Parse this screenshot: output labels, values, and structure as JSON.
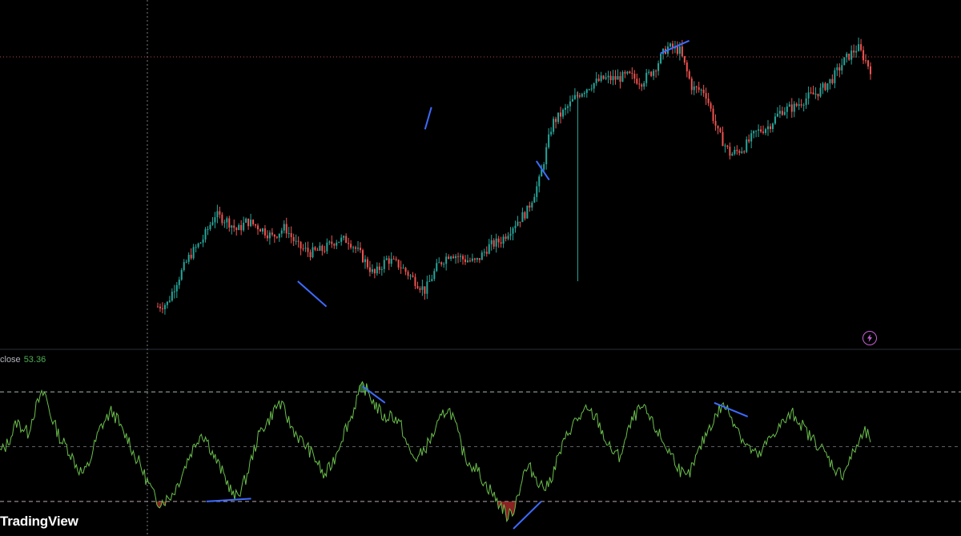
{
  "colors": {
    "background": "#000000",
    "up": "#26a69a",
    "down": "#ef5350",
    "divergence": "#3d6bff",
    "rsi_line": "#6abf4b",
    "rsi_fill": "#4caf50",
    "crosshair": "#787b86",
    "price_line": "#b2494d",
    "level_line": "#d1d4dc",
    "bolt": "#c760d8"
  },
  "indicator": {
    "label": "close",
    "value": "53.36"
  },
  "branding": {
    "name": "TradingView"
  },
  "icons": {
    "alert": "lightning-icon"
  },
  "chart_data": [
    {
      "type": "candlestick",
      "title": "",
      "price_path_keypoints": {
        "x": [
          0,
          3,
          6,
          10,
          14,
          18,
          22,
          25,
          28,
          32,
          36,
          40,
          44,
          48,
          52,
          56,
          60,
          64,
          68,
          72,
          76,
          80,
          84,
          88,
          92,
          96,
          100,
          104,
          108,
          112,
          116,
          120,
          124,
          128,
          132,
          136,
          140,
          144,
          148,
          152,
          156,
          160,
          164,
          168,
          172,
          176,
          180,
          184,
          188,
          192,
          196,
          200,
          204,
          208,
          212,
          216,
          220,
          224
        ],
        "y": [
          12,
          13,
          20,
          28,
          33,
          41,
          39,
          36,
          39,
          37,
          34,
          37,
          31,
          29,
          30,
          33,
          33,
          28,
          22,
          27,
          25,
          21,
          17,
          25,
          29,
          27,
          26,
          31,
          33,
          38,
          42,
          52,
          70,
          74,
          79,
          82,
          84,
          84,
          85,
          83,
          87,
          94,
          93,
          81,
          80,
          67,
          60,
          62,
          67,
          69,
          74,
          75,
          78,
          80,
          84,
          90,
          94,
          87
        ]
      },
      "divergence_lines": [
        {
          "from": [
            44,
            20
          ],
          "to": [
            53,
            12
          ]
        },
        {
          "from": [
            84,
            68
          ],
          "to": [
            86,
            75
          ]
        },
        {
          "from": [
            119,
            58
          ],
          "to": [
            123,
            52
          ]
        },
        {
          "from": [
            158,
            92
          ],
          "to": [
            167,
            96
          ]
        }
      ]
    },
    {
      "type": "line",
      "title": "",
      "series": [
        {
          "name": "close",
          "values": [
            48,
            50,
            54,
            59,
            57,
            55,
            62,
            67,
            70,
            62,
            57,
            52,
            50,
            46,
            42,
            40,
            44,
            51,
            57,
            60,
            63,
            60,
            55,
            53,
            47,
            44,
            39,
            35,
            30,
            30,
            31,
            33,
            37,
            42,
            47,
            51,
            55,
            53,
            48,
            44,
            40,
            36,
            31,
            34,
            38,
            45,
            52,
            57,
            59,
            63,
            66,
            63,
            58,
            55,
            52,
            50,
            47,
            44,
            39,
            42,
            46,
            52,
            57,
            61,
            68,
            72,
            70,
            66,
            63,
            60,
            62,
            60,
            57,
            50,
            46,
            46,
            49,
            52,
            56,
            60,
            64,
            62,
            55,
            48,
            44,
            43,
            40,
            36,
            34,
            30,
            28,
            24,
            27,
            34,
            41,
            42,
            39,
            36,
            35,
            40,
            46,
            51,
            56,
            59,
            61,
            63,
            62,
            60,
            55,
            50,
            48,
            46,
            52,
            58,
            62,
            64,
            62,
            58,
            55,
            51,
            48,
            45,
            41,
            38,
            42,
            47,
            52,
            57,
            60,
            64,
            65,
            61,
            58,
            53,
            50,
            48,
            46,
            50,
            53,
            56,
            58,
            60,
            62,
            60,
            57,
            54,
            52,
            50,
            47,
            44,
            41,
            40,
            44,
            48,
            52,
            55,
            53
          ]
        }
      ],
      "ylim": [
        20,
        80
      ],
      "levels": [
        70,
        50,
        30
      ],
      "divergence_lines": [
        {
          "from": [
            37,
            30
          ],
          "to": [
            45,
            31
          ]
        },
        {
          "from": [
            65,
            72
          ],
          "to": [
            69,
            66
          ]
        },
        {
          "from": [
            92,
            20
          ],
          "to": [
            97,
            30
          ]
        },
        {
          "from": [
            128,
            66
          ],
          "to": [
            134,
            61
          ]
        }
      ]
    }
  ]
}
